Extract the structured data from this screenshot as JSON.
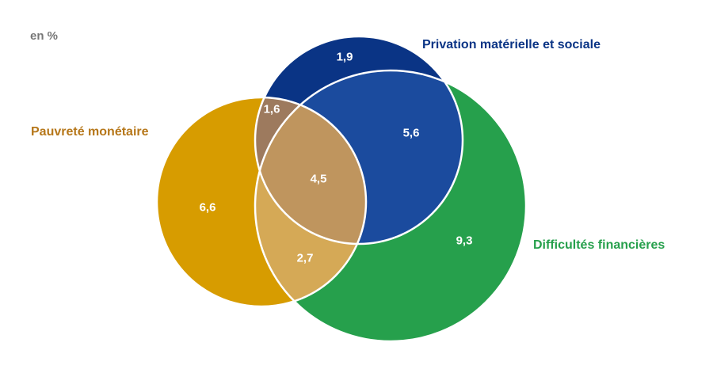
{
  "unit_label": "en %",
  "sets": {
    "privation": {
      "label": "Privation matérielle et sociale",
      "color": "#0a3485",
      "inner_color": "#1b4b9e"
    },
    "pauvrete": {
      "label": "Pauvreté monétaire",
      "color": "#d79c00",
      "label_color": "#b6771a"
    },
    "difficultes": {
      "label": "Difficultés financières",
      "color": "#26a04c"
    }
  },
  "regions": {
    "privation_only": {
      "value": "1,9"
    },
    "privation_pauvrete": {
      "value": "1,6",
      "color": "#9d7a5e"
    },
    "privation_difficultes": {
      "value": "5,6"
    },
    "all_three": {
      "value": "4,5",
      "color": "#bf955e"
    },
    "pauvrete_only": {
      "value": "6,6"
    },
    "pauvrete_difficultes": {
      "value": "2,7",
      "color": "#d5a956"
    },
    "difficultes_only": {
      "value": "9,3"
    }
  }
}
